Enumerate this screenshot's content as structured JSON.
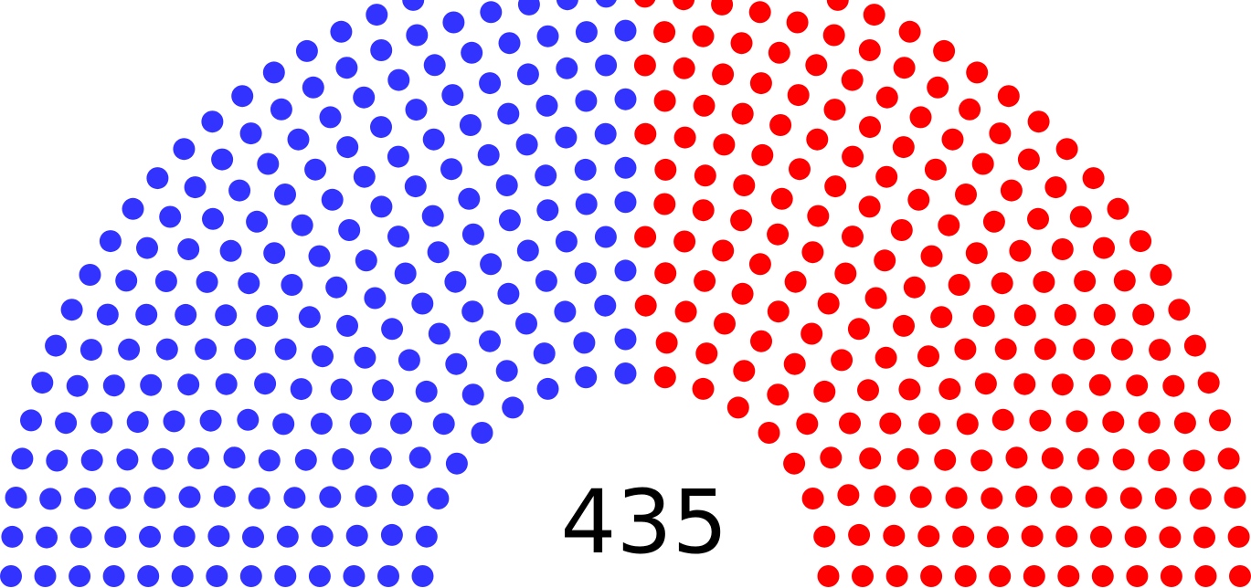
{
  "chart_data": {
    "type": "parliament",
    "total_label": "435",
    "series": [
      {
        "values": [
          222
        ],
        "color": "#3333ff"
      },
      {
        "values": [
          213
        ],
        "color": "#ff0000"
      }
    ],
    "rows": 13
  }
}
